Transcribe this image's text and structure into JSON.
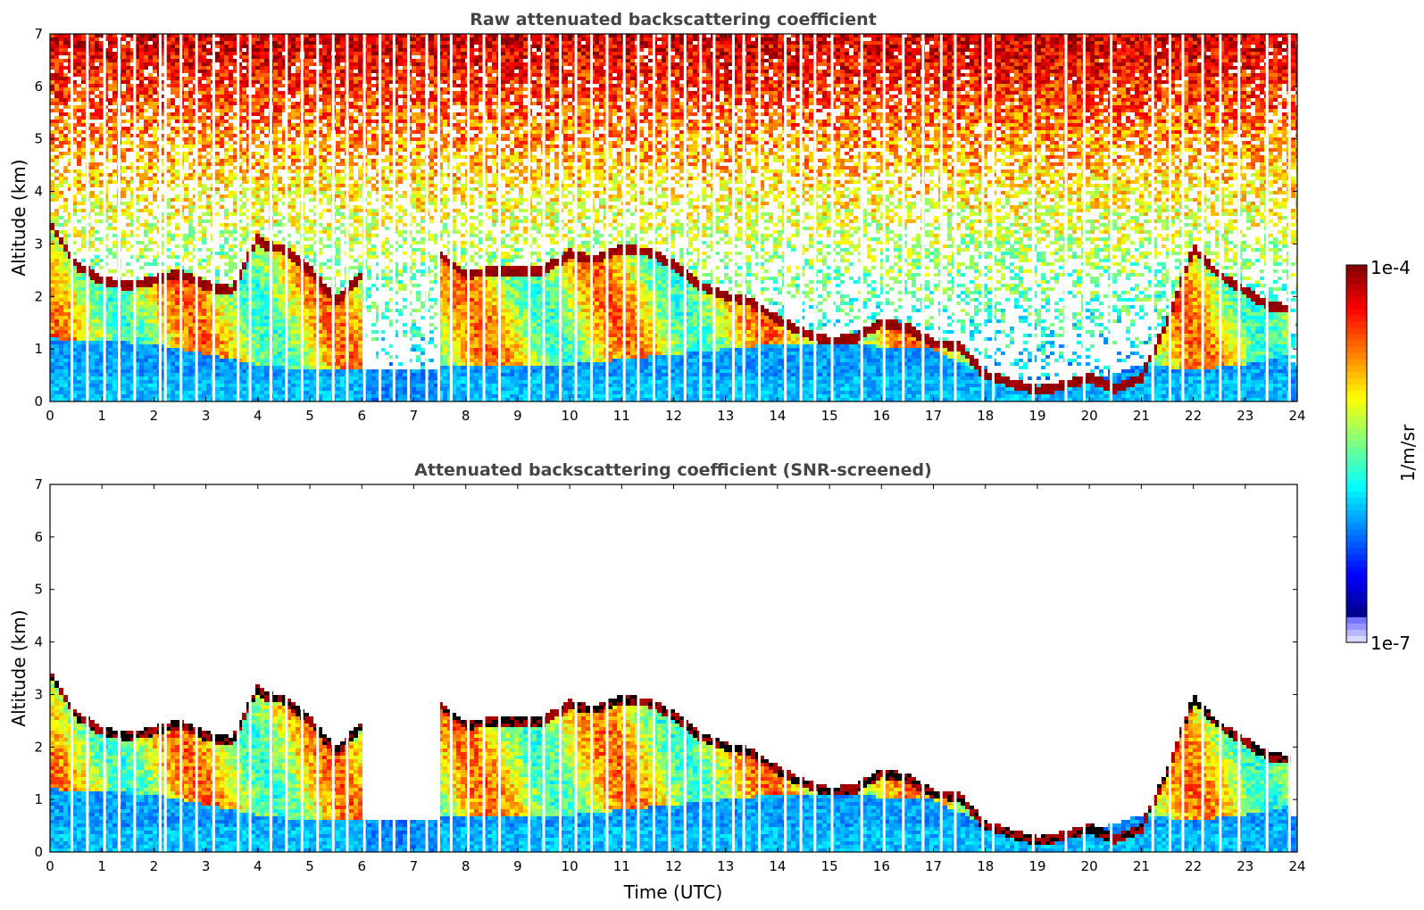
{
  "colors": {
    "colormap": "jet",
    "colormap_stops": [
      "#00007f",
      "#0000ff",
      "#007fff",
      "#00ffff",
      "#7fff7f",
      "#ffff00",
      "#ff7f00",
      "#ff0000",
      "#7f0000"
    ],
    "low_end_stops": [
      "#e8e8ff",
      "#7070ff"
    ],
    "title_color": "#444444",
    "gap_color": "#ffffff",
    "cloud_edge_color": "#000000"
  },
  "chart_data": [
    {
      "type": "heatmap",
      "title": "Raw attenuated backscattering coefficient",
      "xlabel": "",
      "ylabel": "Altitude (km)",
      "xlim": [
        0,
        24
      ],
      "ylim": [
        0,
        7
      ],
      "xticks": [
        "0",
        "1",
        "2",
        "3",
        "4",
        "5",
        "6",
        "7",
        "8",
        "9",
        "10",
        "11",
        "12",
        "13",
        "14",
        "15",
        "16",
        "17",
        "18",
        "19",
        "20",
        "21",
        "22",
        "23",
        "24"
      ],
      "yticks": [
        "0",
        "1",
        "2",
        "3",
        "4",
        "5",
        "6",
        "7"
      ],
      "screened": false,
      "variable": "attenuated backscatter (log10, 1/m/sr)"
    },
    {
      "type": "heatmap",
      "title": "Attenuated backscattering coefficient (SNR-screened)",
      "xlabel": "Time (UTC)",
      "ylabel": "Altitude (km)",
      "xlim": [
        0,
        24
      ],
      "ylim": [
        0,
        7
      ],
      "xticks": [
        "0",
        "1",
        "2",
        "3",
        "4",
        "5",
        "6",
        "7",
        "8",
        "9",
        "10",
        "11",
        "12",
        "13",
        "14",
        "15",
        "16",
        "17",
        "18",
        "19",
        "20",
        "21",
        "22",
        "23",
        "24"
      ],
      "yticks": [
        "0",
        "1",
        "2",
        "3",
        "4",
        "5",
        "6",
        "7"
      ],
      "screened": true,
      "variable": "attenuated backscatter (log10, 1/m/sr)"
    }
  ],
  "features": {
    "cloud_layer": {
      "time_utc": [
        0.0,
        0.5,
        1.0,
        1.5,
        2.0,
        2.5,
        3.0,
        3.5,
        4.0,
        4.2,
        4.5,
        5.0,
        5.5,
        6.0,
        6.5,
        7.0,
        7.5,
        8.0,
        8.5,
        9.0,
        9.5,
        10.0,
        10.5,
        11.0,
        11.5,
        12.0,
        12.5,
        13.0,
        13.5,
        14.0,
        14.5,
        15.0,
        15.5,
        16.0,
        16.5,
        17.0,
        17.5,
        18.0,
        18.5,
        19.0,
        19.5,
        20.0,
        20.5,
        21.0,
        21.5,
        22.0,
        22.5,
        23.0,
        23.5,
        23.9
      ],
      "altitude_km": [
        3.4,
        2.6,
        2.3,
        2.2,
        2.3,
        2.45,
        2.2,
        2.1,
        3.1,
        2.95,
        2.9,
        2.5,
        1.9,
        2.4,
        null,
        null,
        2.8,
        2.4,
        2.5,
        2.5,
        2.5,
        2.8,
        2.7,
        2.9,
        2.85,
        2.6,
        2.2,
        2.0,
        1.9,
        1.55,
        1.3,
        1.15,
        1.2,
        1.5,
        1.4,
        1.1,
        1.05,
        0.5,
        0.35,
        0.2,
        0.3,
        0.45,
        0.25,
        0.45,
        1.5,
        2.9,
        2.4,
        2.1,
        1.8,
        1.75
      ]
    },
    "aerosol_top_km": {
      "time_utc": [
        0.0,
        2.0,
        3.0,
        4.0,
        5.0,
        6.0,
        7.0,
        8.0,
        10.0,
        11.0,
        14.0,
        15.0,
        17.0,
        18.0,
        19.0,
        20.0,
        21.0,
        22.0,
        23.0,
        23.9
      ],
      "altitude_km": [
        1.2,
        1.1,
        0.9,
        0.7,
        0.6,
        0.6,
        0.6,
        0.7,
        0.7,
        0.8,
        1.1,
        1.1,
        1.0,
        0.5,
        0.3,
        0.4,
        0.7,
        0.6,
        0.7,
        0.9
      ]
    },
    "data_gaps_time_utc": [
      0.42,
      0.72,
      1.05,
      1.33,
      1.63,
      2.12,
      2.22,
      2.52,
      2.82,
      3.15,
      3.62,
      3.85,
      4.25,
      4.55,
      4.85,
      5.15,
      5.45,
      5.72,
      6.05,
      6.35,
      6.62,
      6.9,
      7.25,
      7.48,
      7.72,
      8.05,
      8.35,
      8.65,
      9.22,
      9.5,
      9.82,
      10.12,
      10.42,
      10.72,
      11.05,
      11.32,
      11.62,
      11.92,
      12.22,
      12.52,
      12.78,
      13.15,
      13.35,
      13.65,
      14.15,
      14.45,
      14.72,
      15.05,
      15.62,
      16.05,
      16.42,
      16.8,
      17.15,
      17.42,
      17.95,
      18.15,
      18.92,
      19.55,
      19.9,
      20.42,
      21.22,
      21.55,
      21.8,
      22.18,
      22.52,
      22.88,
      23.42,
      23.85
    ]
  },
  "colorbar": {
    "max_label": "1e-4",
    "min_label": "1e-7",
    "unit_label": "1/m/sr",
    "log_min": -7,
    "log_max": -4
  }
}
